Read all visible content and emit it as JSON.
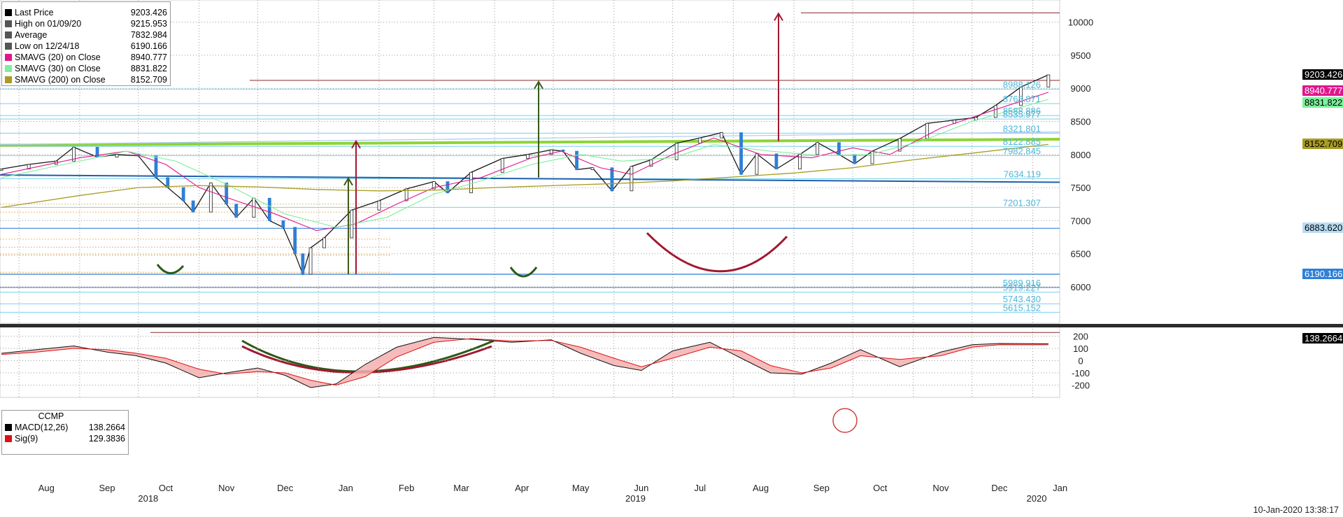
{
  "chart_data": [
    {
      "type": "line",
      "title": "",
      "ylabel": "",
      "xlabel": "",
      "ylim": [
        5450,
        10250
      ],
      "y_ticks": [
        6000,
        6500,
        7000,
        7500,
        8000,
        8500,
        9000,
        9500,
        10000
      ],
      "x_tick_labels": [
        {
          "label": "Aug",
          "date": "2018-08"
        },
        {
          "label": "Sep",
          "date": "2018-09"
        },
        {
          "label": "Oct",
          "date": "2018-10"
        },
        {
          "label": "Nov",
          "date": "2018-11"
        },
        {
          "label": "Dec",
          "date": "2018-12"
        },
        {
          "label": "Jan",
          "date": "2019-01"
        },
        {
          "label": "Feb",
          "date": "2019-02"
        },
        {
          "label": "Mar",
          "date": "2019-03"
        },
        {
          "label": "Apr",
          "date": "2019-04"
        },
        {
          "label": "May",
          "date": "2019-05"
        },
        {
          "label": "Jun",
          "date": "2019-06"
        },
        {
          "label": "Jul",
          "date": "2019-07"
        },
        {
          "label": "Aug",
          "date": "2019-08"
        },
        {
          "label": "Sep",
          "date": "2019-09"
        },
        {
          "label": "Oct",
          "date": "2019-10"
        },
        {
          "label": "Nov",
          "date": "2019-11"
        },
        {
          "label": "Dec",
          "date": "2019-12"
        },
        {
          "label": "Jan",
          "date": "2020-01"
        }
      ],
      "year_labels": [
        "2018",
        "2019",
        "2020"
      ],
      "grid": true,
      "legend_position": "top-left",
      "legend": [
        {
          "label": "Last Price",
          "value": "9203.426",
          "color": "#000000"
        },
        {
          "label": "High on 01/09/20",
          "value": "9215.953",
          "color": "#555555"
        },
        {
          "label": "Average",
          "value": "7832.984",
          "color": "#555555"
        },
        {
          "label": "Low on 12/24/18",
          "value": "6190.166",
          "color": "#555555"
        },
        {
          "label": "SMAVG (20)  on Close",
          "value": "8940.777",
          "color": "#e0168c"
        },
        {
          "label": "SMAVG (30)  on Close",
          "value": "8831.822",
          "color": "#7cf09a"
        },
        {
          "label": "SMAVG (200)  on Close",
          "value": "8152.709",
          "color": "#a89c22"
        }
      ],
      "series": [
        {
          "name": "Last Price",
          "x": [
            "2018-07-23",
            "2018-08-06",
            "2018-08-20",
            "2018-08-29",
            "2018-09-10",
            "2018-09-20",
            "2018-10-01",
            "2018-10-10",
            "2018-10-16",
            "2018-10-24",
            "2018-10-29",
            "2018-11-07",
            "2018-11-15",
            "2018-11-20",
            "2018-11-29",
            "2018-12-07",
            "2018-12-14",
            "2018-12-20",
            "2018-12-24",
            "2018-12-28",
            "2019-01-04",
            "2019-01-18",
            "2019-02-01",
            "2019-02-15",
            "2019-03-01",
            "2019-03-08",
            "2019-03-20",
            "2019-04-05",
            "2019-04-18",
            "2019-04-30",
            "2019-05-06",
            "2019-05-13",
            "2019-05-21",
            "2019-05-31",
            "2019-06-10",
            "2019-06-20",
            "2019-07-03",
            "2019-07-15",
            "2019-07-26",
            "2019-08-05",
            "2019-08-13",
            "2019-08-23",
            "2019-09-04",
            "2019-09-13",
            "2019-09-24",
            "2019-10-02",
            "2019-10-11",
            "2019-10-25",
            "2019-11-08",
            "2019-11-22",
            "2019-12-03",
            "2019-12-13",
            "2019-12-26",
            "2020-01-09"
          ],
          "values": [
            7780,
            7850,
            7900,
            8110,
            7960,
            8000,
            7980,
            7650,
            7500,
            7300,
            7130,
            7570,
            7250,
            7050,
            7340,
            7000,
            6900,
            6500,
            6190,
            6590,
            6740,
            7160,
            7300,
            7480,
            7590,
            7420,
            7730,
            7940,
            8000,
            8070,
            8050,
            7770,
            7800,
            7450,
            7820,
            7920,
            8170,
            8250,
            8330,
            7700,
            8010,
            7780,
            8000,
            8180,
            8000,
            7860,
            8050,
            8240,
            8470,
            8520,
            8560,
            8740,
            9020,
            9203
          ]
        },
        {
          "name": "SMAVG (20)  on Close",
          "x": [
            "2018-07-23",
            "2018-09-01",
            "2018-09-25",
            "2018-10-15",
            "2018-11-01",
            "2018-11-20",
            "2018-12-10",
            "2018-12-31",
            "2019-01-20",
            "2019-02-10",
            "2019-03-01",
            "2019-03-25",
            "2019-04-20",
            "2019-05-05",
            "2019-05-25",
            "2019-06-10",
            "2019-07-01",
            "2019-07-22",
            "2019-08-15",
            "2019-09-10",
            "2019-10-01",
            "2019-10-20",
            "2019-11-15",
            "2019-12-10",
            "2020-01-09"
          ],
          "values": [
            7700,
            7950,
            8050,
            7850,
            7500,
            7300,
            7100,
            6850,
            6950,
            7250,
            7500,
            7650,
            7950,
            8050,
            7800,
            7700,
            8000,
            8250,
            8000,
            7950,
            8100,
            8000,
            8400,
            8650,
            8940
          ]
        },
        {
          "name": "SMAVG (30)  on Close",
          "x": [
            "2018-07-23",
            "2018-09-01",
            "2018-09-25",
            "2018-10-20",
            "2018-11-15",
            "2018-12-15",
            "2019-01-10",
            "2019-02-05",
            "2019-03-01",
            "2019-03-25",
            "2019-04-20",
            "2019-05-15",
            "2019-06-05",
            "2019-07-01",
            "2019-07-22",
            "2019-08-20",
            "2019-09-15",
            "2019-10-10",
            "2019-11-05",
            "2019-12-01",
            "2020-01-09"
          ],
          "values": [
            7650,
            7900,
            8050,
            7900,
            7550,
            7100,
            6900,
            7050,
            7400,
            7600,
            7850,
            8000,
            7900,
            7950,
            8150,
            8050,
            7980,
            8000,
            8200,
            8500,
            8832
          ]
        },
        {
          "name": "SMAVG (200)  on Close",
          "x": [
            "2018-07-23",
            "2018-09-01",
            "2018-10-01",
            "2018-11-01",
            "2018-12-01",
            "2019-01-01",
            "2019-02-01",
            "2019-03-01",
            "2019-04-01",
            "2019-05-01",
            "2019-06-01",
            "2019-07-01",
            "2019-08-01",
            "2019-09-01",
            "2019-10-01",
            "2019-11-01",
            "2019-12-01",
            "2020-01-09"
          ],
          "values": [
            7200,
            7380,
            7500,
            7530,
            7510,
            7470,
            7450,
            7460,
            7500,
            7530,
            7560,
            7600,
            7660,
            7720,
            7800,
            7920,
            8020,
            8153
          ]
        }
      ],
      "level_labels": [
        "8988.126",
        "8768.871",
        "8588.886",
        "8535.977",
        "8321.801",
        "8122.885",
        "7982.845",
        "7634.119",
        "7201.307",
        "5989.916",
        "5919.227",
        "5743.430",
        "5615.152"
      ],
      "right_tags": [
        {
          "value": "9203.426",
          "bg": "#000000",
          "fg": "#ffffff"
        },
        {
          "value": "8940.777",
          "bg": "#e0168c",
          "fg": "#ffffff"
        },
        {
          "value": "8831.822",
          "bg": "#7cf09a",
          "fg": "#000000"
        },
        {
          "value": "8152.709",
          "bg": "#a89c22",
          "fg": "#000000"
        },
        {
          "value": "6883.620",
          "bg": "#b9dcf2",
          "fg": "#000000"
        },
        {
          "value": "6190.166",
          "bg": "#2f7fd6",
          "fg": "#ffffff"
        }
      ]
    },
    {
      "type": "area",
      "title": "CCMP",
      "ylim": [
        -300,
        260
      ],
      "y_ticks": [
        -200,
        -100,
        0,
        100,
        200
      ],
      "legend": [
        {
          "label": "MACD(12,26)",
          "value": "138.2664",
          "color": "#000000"
        },
        {
          "label": "Sig(9)",
          "value": "129.3836",
          "color": "#e01010"
        }
      ],
      "right_tag": {
        "value": "138.2664",
        "bg": "#000000",
        "fg": "#ffffff"
      },
      "series": [
        {
          "name": "MACD(12,26)",
          "x": [
            "2018-07-23",
            "2018-08-10",
            "2018-08-29",
            "2018-09-15",
            "2018-09-30",
            "2018-10-15",
            "2018-11-01",
            "2018-11-15",
            "2018-12-01",
            "2018-12-15",
            "2018-12-28",
            "2019-01-10",
            "2019-01-25",
            "2019-02-10",
            "2019-03-01",
            "2019-03-20",
            "2019-04-10",
            "2019-04-30",
            "2019-05-15",
            "2019-06-01",
            "2019-06-15",
            "2019-07-01",
            "2019-07-20",
            "2019-08-05",
            "2019-08-20",
            "2019-09-05",
            "2019-09-20",
            "2019-10-05",
            "2019-10-25",
            "2019-11-15",
            "2019-12-01",
            "2019-12-15",
            "2020-01-09"
          ],
          "values": [
            60,
            90,
            120,
            70,
            40,
            -20,
            -140,
            -100,
            -60,
            -120,
            -220,
            -190,
            -30,
            110,
            190,
            175,
            150,
            170,
            60,
            -40,
            -80,
            80,
            150,
            20,
            -100,
            -110,
            -20,
            90,
            -50,
            70,
            130,
            140,
            138
          ]
        },
        {
          "name": "Sig(9)",
          "x": [
            "2018-07-23",
            "2018-08-10",
            "2018-08-29",
            "2018-09-15",
            "2018-09-30",
            "2018-10-15",
            "2018-11-01",
            "2018-11-15",
            "2018-12-01",
            "2018-12-15",
            "2018-12-28",
            "2019-01-10",
            "2019-01-25",
            "2019-02-10",
            "2019-03-01",
            "2019-03-20",
            "2019-04-10",
            "2019-04-30",
            "2019-05-15",
            "2019-06-01",
            "2019-06-15",
            "2019-07-01",
            "2019-07-20",
            "2019-08-05",
            "2019-08-20",
            "2019-09-05",
            "2019-09-20",
            "2019-10-05",
            "2019-10-25",
            "2019-11-15",
            "2019-12-01",
            "2019-12-15",
            "2020-01-09"
          ],
          "values": [
            50,
            70,
            100,
            90,
            60,
            20,
            -70,
            -110,
            -90,
            -100,
            -160,
            -200,
            -130,
            30,
            150,
            180,
            160,
            165,
            110,
            20,
            -50,
            20,
            110,
            80,
            -40,
            -100,
            -60,
            40,
            10,
            40,
            110,
            130,
            129
          ]
        }
      ]
    }
  ],
  "footer": {
    "timestamp": "10-Jan-2020 13:38:17"
  }
}
